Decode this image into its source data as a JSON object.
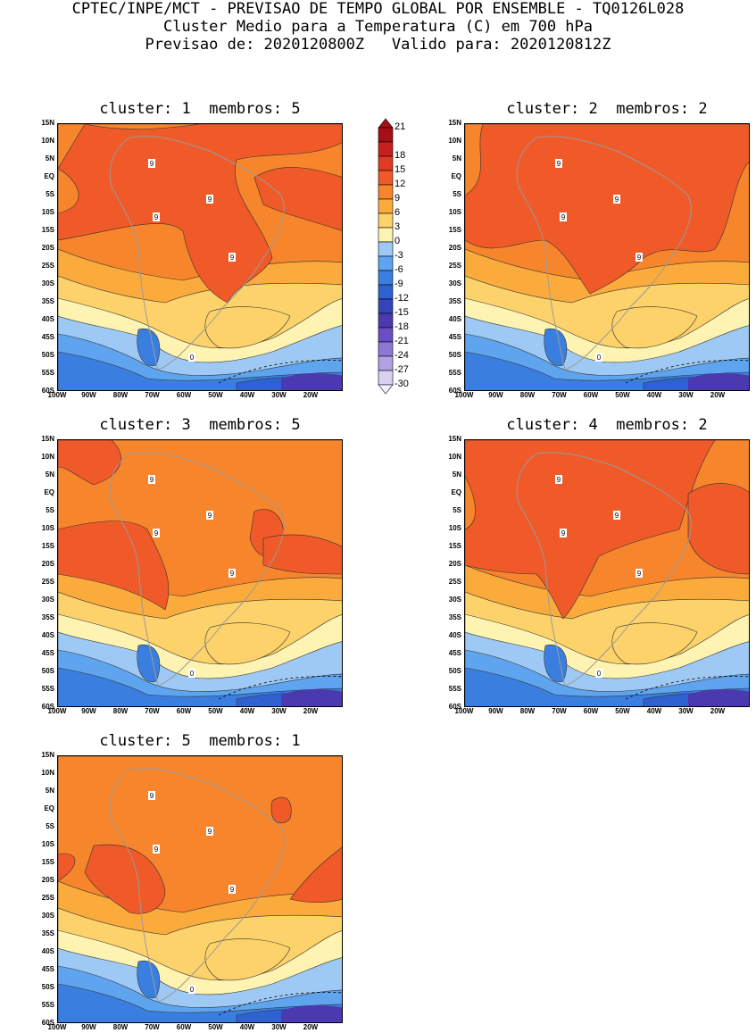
{
  "header": {
    "line1": "CPTEC/INPE/MCT - PREVISAO DE TEMPO GLOBAL POR ENSEMBLE - TQ0126L028",
    "line2": "Cluster Medio para a Temperatura (C) em 700 hPa",
    "line3": "Previsao de: 2020120800Z   Valido para: 2020120812Z"
  },
  "panels": [
    {
      "title": "cluster: 1  membros: 5"
    },
    {
      "title": "cluster: 2  membros: 2"
    },
    {
      "title": "cluster: 3  membros: 5"
    },
    {
      "title": "cluster: 4  membros: 2"
    },
    {
      "title": "cluster: 5  membros: 1"
    }
  ],
  "axes": {
    "lat_labels": [
      "15N",
      "10N",
      "5N",
      "EQ",
      "5S",
      "10S",
      "15S",
      "20S",
      "25S",
      "30S",
      "35S",
      "40S",
      "45S",
      "50S",
      "55S",
      "60S"
    ],
    "lon_labels": [
      "100W",
      "90W",
      "80W",
      "70W",
      "60W",
      "50W",
      "40W",
      "30W",
      "20W"
    ]
  },
  "colorbar": {
    "labels": [
      "21",
      "18",
      "15",
      "12",
      "9",
      "6",
      "3",
      "0",
      "-3",
      "-6",
      "-9",
      "-12",
      "-15",
      "-18",
      "-21",
      "-24",
      "-27",
      "-30"
    ],
    "colors": [
      "#a50f15",
      "#c8201e",
      "#e03b22",
      "#f05a28",
      "#f7852c",
      "#fbab3c",
      "#fdd26a",
      "#fef3b0",
      "#9ec9f5",
      "#5fa4ee",
      "#3a7fe0",
      "#2f61d0",
      "#3444bb",
      "#4b39b0",
      "#6a4fc4",
      "#8e78d6",
      "#b2a2e4",
      "#d9d0f2"
    ]
  },
  "contour_labels": {
    "warm": "9",
    "zero": "0"
  }
}
